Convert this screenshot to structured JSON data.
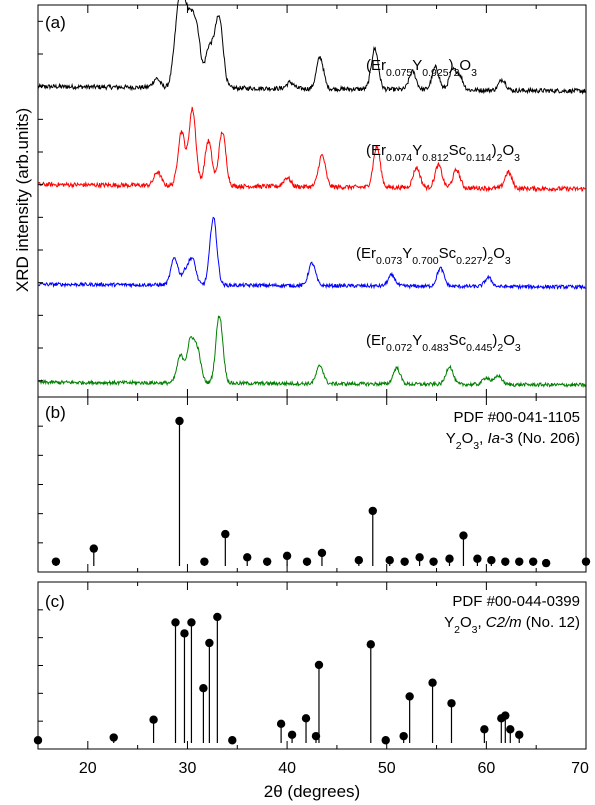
{
  "chart_data": [
    {
      "panel": "(a)",
      "type": "line",
      "ylabel": "XRD intensity (arb.units)",
      "x_range": [
        15,
        70
      ],
      "series": [
        {
          "formula": [
            [
              "(Er",
              ""
            ],
            [
              "0.075",
              "sub"
            ],
            [
              "Y",
              ""
            ],
            [
              "0.925",
              "sub"
            ],
            [
              ")",
              ""
            ],
            [
              "2",
              "sub"
            ],
            [
              "O",
              ""
            ],
            [
              "3",
              "sub"
            ]
          ],
          "color": "#000000",
          "offset": 3,
          "noise": 0.05,
          "baseline": 0.05,
          "peaks": [
            [
              26.9,
              0.1
            ],
            [
              28.8,
              0.35
            ],
            [
              29.3,
              0.8
            ],
            [
              29.8,
              0.55
            ],
            [
              30.4,
              0.6
            ],
            [
              31.0,
              0.55
            ],
            [
              32.1,
              0.4
            ],
            [
              32.8,
              0.4
            ],
            [
              33.3,
              0.6
            ],
            [
              40.3,
              0.07
            ],
            [
              43.3,
              0.35
            ],
            [
              48.8,
              0.45
            ],
            [
              52.6,
              0.2
            ],
            [
              54.9,
              0.25
            ],
            [
              56.6,
              0.2
            ],
            [
              57.3,
              0.15
            ],
            [
              61.6,
              0.12
            ]
          ]
        },
        {
          "formula": [
            [
              "(Er",
              ""
            ],
            [
              "0.074",
              "sub"
            ],
            [
              "Y",
              ""
            ],
            [
              "0.812",
              "sub"
            ],
            [
              "Sc",
              ""
            ],
            [
              "0.114",
              "sub"
            ],
            [
              ")",
              ""
            ],
            [
              "2",
              "sub"
            ],
            [
              "O",
              ""
            ],
            [
              "3",
              "sub"
            ]
          ],
          "color": "#ff0000",
          "offset": 2,
          "noise": 0.05,
          "baseline": 0.05,
          "peaks": [
            [
              27.0,
              0.15
            ],
            [
              29.4,
              0.6
            ],
            [
              30.5,
              0.85
            ],
            [
              32.1,
              0.5
            ],
            [
              33.5,
              0.6
            ],
            [
              40.0,
              0.1
            ],
            [
              43.5,
              0.35
            ],
            [
              49.0,
              0.45
            ],
            [
              53.0,
              0.22
            ],
            [
              55.2,
              0.25
            ],
            [
              57.0,
              0.2
            ],
            [
              62.2,
              0.18
            ]
          ]
        },
        {
          "formula": [
            [
              "(Er",
              ""
            ],
            [
              "0.073",
              "sub"
            ],
            [
              "Y",
              ""
            ],
            [
              "0.700",
              "sub"
            ],
            [
              "Sc",
              ""
            ],
            [
              "0.227",
              "sub"
            ],
            [
              ")",
              ""
            ],
            [
              "2",
              "sub"
            ],
            [
              "O",
              ""
            ],
            [
              "3",
              "sub"
            ]
          ],
          "color": "#0000ff",
          "offset": 1,
          "noise": 0.04,
          "baseline": 0.03,
          "peaks": [
            [
              28.7,
              0.3
            ],
            [
              29.8,
              0.15
            ],
            [
              30.5,
              0.28
            ],
            [
              32.6,
              0.75
            ],
            [
              42.5,
              0.25
            ],
            [
              50.5,
              0.12
            ],
            [
              55.4,
              0.2
            ],
            [
              60.2,
              0.1
            ]
          ]
        },
        {
          "formula": [
            [
              "(Er",
              ""
            ],
            [
              "0.072",
              "sub"
            ],
            [
              "Y",
              ""
            ],
            [
              "0.483",
              "sub"
            ],
            [
              "Sc",
              ""
            ],
            [
              "0.445",
              "sub"
            ],
            [
              ")",
              ""
            ],
            [
              "2",
              "sub"
            ],
            [
              "O",
              ""
            ],
            [
              "3",
              "sub"
            ]
          ],
          "color": "#008000",
          "offset": 0,
          "noise": 0.04,
          "baseline": 0.03,
          "peaks": [
            [
              29.3,
              0.3
            ],
            [
              30.3,
              0.45
            ],
            [
              31.0,
              0.35
            ],
            [
              33.2,
              0.75
            ],
            [
              43.3,
              0.2
            ],
            [
              51.0,
              0.18
            ],
            [
              56.3,
              0.2
            ],
            [
              60.0,
              0.08
            ],
            [
              61.2,
              0.1
            ]
          ]
        }
      ]
    },
    {
      "panel": "(b)",
      "type": "stem",
      "note_line1": "PDF #00-041-1105",
      "note_line2": [
        [
          "Y",
          ""
        ],
        [
          "2",
          "sub"
        ],
        [
          "O",
          ""
        ],
        [
          "3",
          "sub"
        ],
        [
          ", ",
          ""
        ],
        [
          "Ia",
          "it"
        ],
        [
          "-3 (No. 206)",
          ""
        ]
      ],
      "x_range": [
        15,
        70
      ],
      "y_range": [
        0,
        100
      ],
      "x": [
        16.8,
        20.6,
        29.2,
        31.7,
        33.8,
        36.0,
        38.0,
        40.0,
        42.0,
        43.5,
        47.2,
        48.6,
        50.3,
        51.8,
        53.3,
        54.7,
        56.3,
        57.7,
        59.1,
        60.5,
        61.9,
        63.3,
        64.7,
        66.0,
        70.0
      ],
      "values": [
        3,
        12,
        100,
        3,
        22,
        6,
        3,
        7,
        3,
        9,
        4,
        38,
        4,
        3,
        6,
        3,
        5,
        21,
        5,
        4,
        3,
        3,
        3,
        2,
        3
      ]
    },
    {
      "panel": "(c)",
      "type": "stem",
      "note_line1": "PDF #00-044-0399",
      "note_line2": [
        [
          "Y",
          ""
        ],
        [
          "2",
          "sub"
        ],
        [
          "O",
          ""
        ],
        [
          "3",
          "sub"
        ],
        [
          ", ",
          ""
        ],
        [
          "C2/m",
          "it"
        ],
        [
          " (No. 12)",
          ""
        ]
      ],
      "x_range": [
        15,
        70
      ],
      "y_range": [
        0,
        100
      ],
      "x": [
        15.0,
        22.6,
        26.6,
        28.8,
        29.7,
        30.4,
        31.6,
        32.2,
        33.0,
        34.5,
        39.4,
        40.5,
        41.9,
        42.9,
        43.2,
        48.4,
        49.9,
        51.7,
        52.3,
        54.6,
        56.5,
        59.8,
        61.5,
        61.9,
        62.4,
        63.3
      ],
      "values": [
        2,
        4,
        17,
        88,
        80,
        88,
        40,
        73,
        92,
        2,
        14,
        6,
        18,
        5,
        57,
        72,
        2,
        5,
        34,
        44,
        29,
        10,
        18,
        20,
        10,
        6
      ]
    }
  ],
  "x_axis": {
    "label": "2θ (degrees)",
    "ticks": [
      "20",
      "30",
      "40",
      "50",
      "60",
      "70"
    ],
    "tick_values": [
      20,
      30,
      40,
      50,
      60,
      70
    ]
  }
}
